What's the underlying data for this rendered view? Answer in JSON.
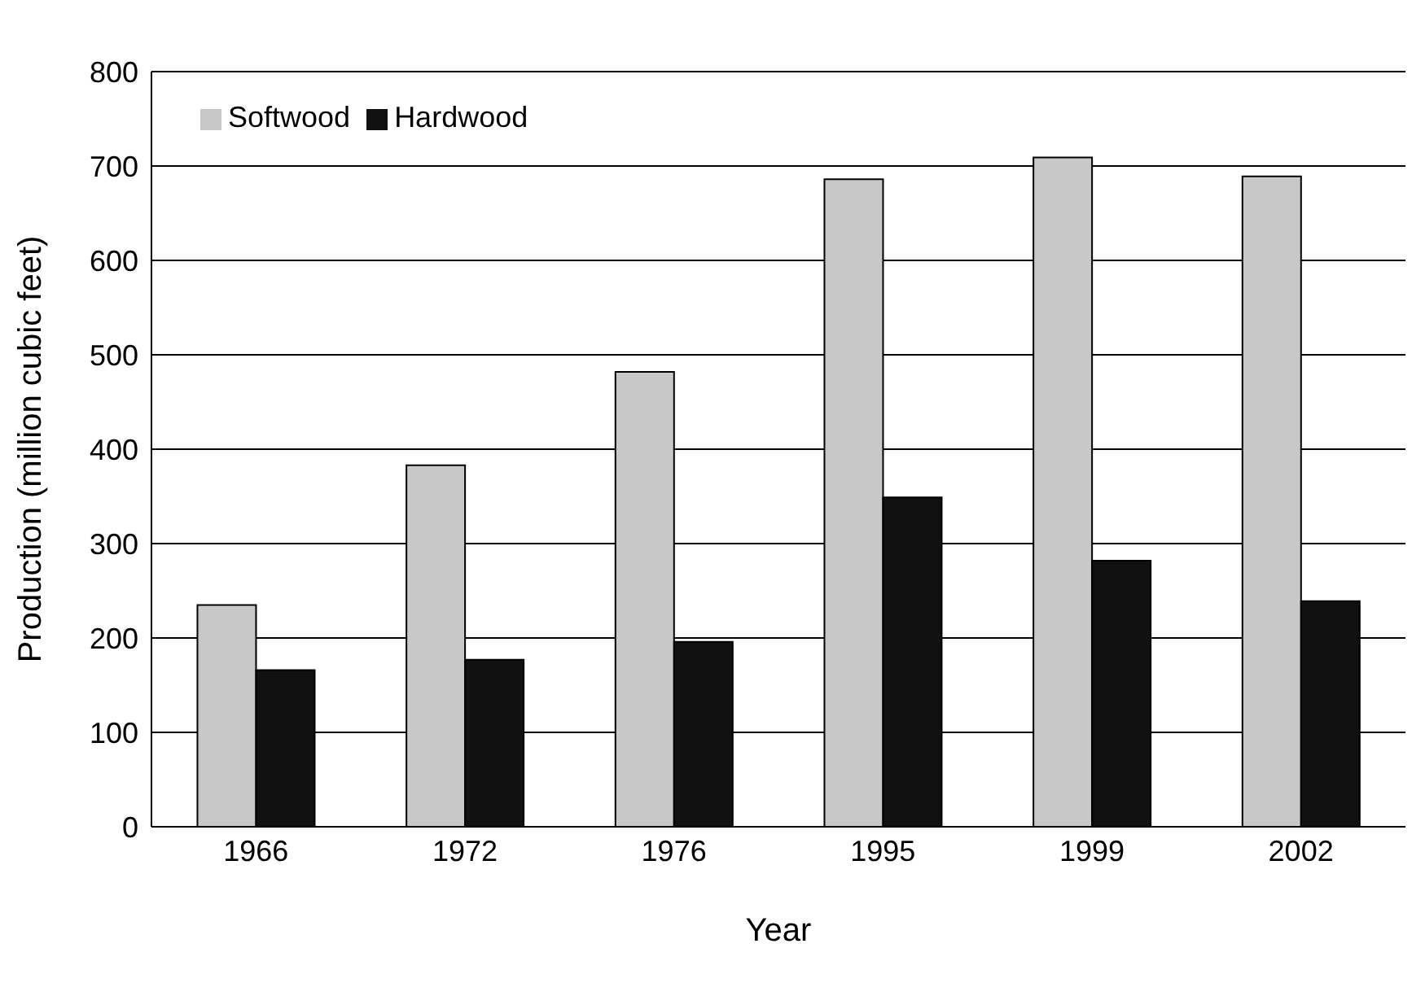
{
  "chart_data": {
    "type": "bar",
    "xlabel": "Year",
    "ylabel": "Production (million cubic feet)",
    "categories": [
      "1966",
      "1972",
      "1976",
      "1995",
      "1999",
      "2002"
    ],
    "series": [
      {
        "name": "Softwood",
        "color": "#c8c8c8",
        "values": [
          235,
          383,
          482,
          686,
          709,
          689
        ]
      },
      {
        "name": "Hardwood",
        "color": "#111111",
        "values": [
          166,
          177,
          196,
          349,
          282,
          239
        ]
      }
    ],
    "ylim": [
      0,
      800
    ],
    "yticks": [
      0,
      100,
      200,
      300,
      400,
      500,
      600,
      700,
      800
    ],
    "grid": "y",
    "legend": "top left"
  }
}
